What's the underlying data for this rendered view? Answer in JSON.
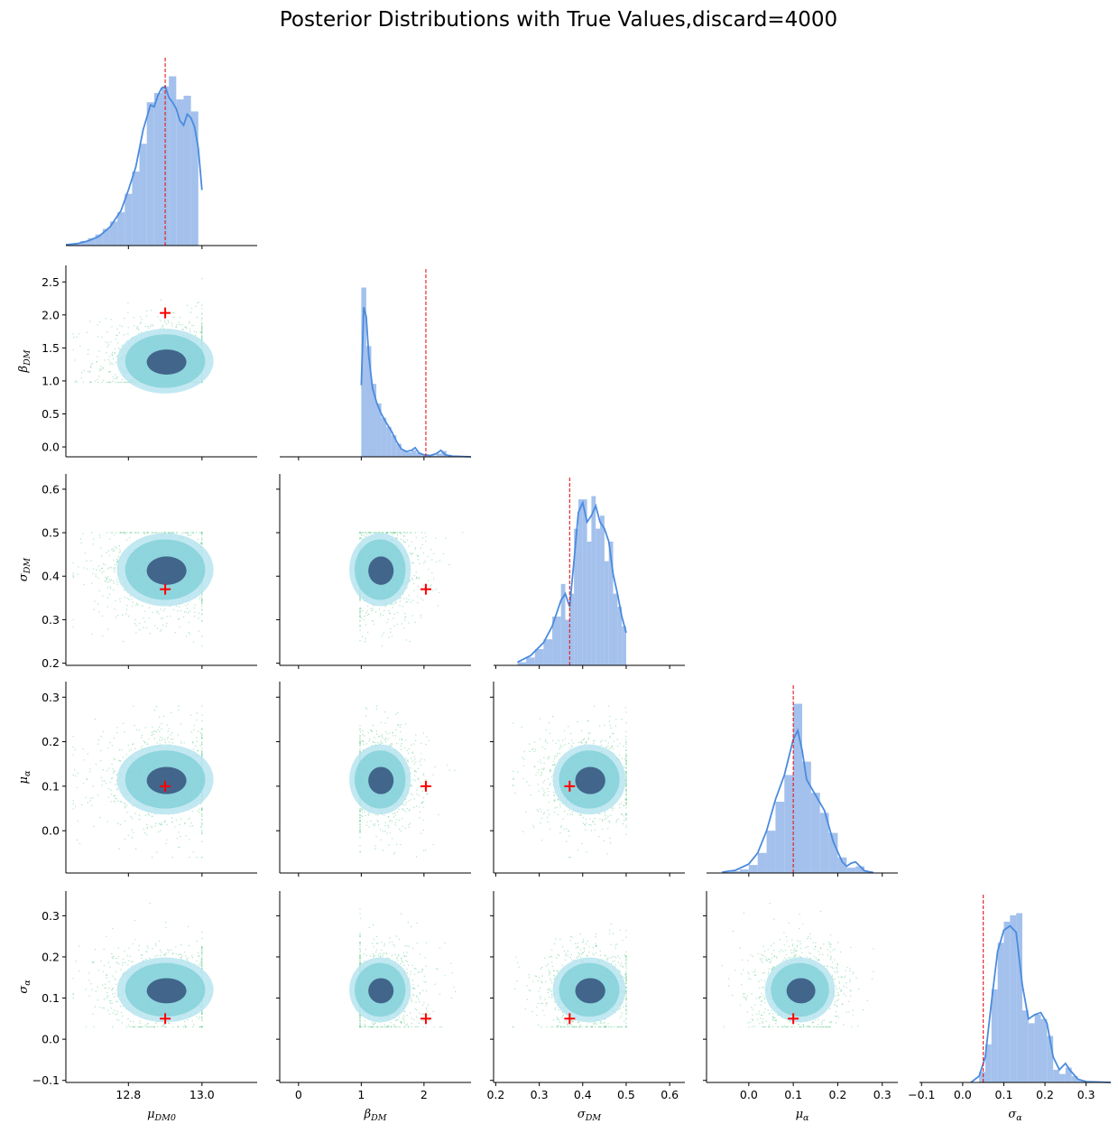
{
  "chart_data": {
    "type": "corner",
    "title": "Posterior Distributions with True Values,discard=4000",
    "parameters": [
      {
        "key": "mu_DM0",
        "label_main": "μ",
        "label_sub": "DM0",
        "true_value": 12.9,
        "range": [
          12.63,
          13.15
        ],
        "ticks": [
          12.8,
          13.0
        ],
        "tick_labels": [
          "12.8",
          "13.0"
        ]
      },
      {
        "key": "beta_DM",
        "label_main": "β",
        "label_sub": "DM",
        "true_value": 2.03,
        "range": [
          -0.3,
          2.75
        ],
        "ticks": [
          0,
          1,
          2
        ],
        "tick_labels": [
          "0",
          "1",
          "2"
        ]
      },
      {
        "key": "sigma_DM",
        "label_main": "σ",
        "label_sub": "DM",
        "true_value": 0.37,
        "range": [
          0.195,
          0.635
        ],
        "ticks": [
          0.2,
          0.3,
          0.4,
          0.5,
          0.6
        ],
        "tick_labels": [
          "0.2",
          "0.3",
          "0.4",
          "0.5",
          "0.6"
        ]
      },
      {
        "key": "mu_alpha",
        "label_main": "μ",
        "label_sub": "α",
        "true_value": 0.1,
        "range": [
          -0.095,
          0.335
        ],
        "ticks": [
          0.0,
          0.1,
          0.2,
          0.3
        ],
        "tick_labels": [
          "0.0",
          "0.1",
          "0.2",
          "0.3"
        ]
      },
      {
        "key": "sigma_alpha",
        "label_main": "σ",
        "label_sub": "α",
        "true_value": 0.05,
        "range": [
          -0.105,
          0.36
        ],
        "ticks": [
          -0.1,
          0.0,
          0.1,
          0.2,
          0.3
        ],
        "tick_labels": [
          "−0.1",
          "0.0",
          "0.1",
          "0.2",
          "0.3"
        ]
      }
    ],
    "y_ticks": {
      "beta_DM": {
        "values": [
          0.0,
          0.5,
          1.0,
          1.5,
          2.0,
          2.5
        ],
        "labels": [
          "0.0",
          "0.5",
          "1.0",
          "1.5",
          "2.0",
          "2.5"
        ],
        "range": [
          -0.15,
          2.75
        ]
      },
      "sigma_DM": {
        "values": [
          0.2,
          0.3,
          0.4,
          0.5,
          0.6
        ],
        "labels": [
          "0.2",
          "0.3",
          "0.4",
          "0.5",
          "0.6"
        ],
        "range": [
          0.195,
          0.635
        ]
      },
      "mu_alpha": {
        "values": [
          0.0,
          0.1,
          0.2,
          0.3
        ],
        "labels": [
          "0.0",
          "0.1",
          "0.2",
          "0.3"
        ],
        "range": [
          -0.095,
          0.335
        ]
      },
      "sigma_alpha": {
        "values": [
          -0.1,
          0.0,
          0.1,
          0.2,
          0.3
        ],
        "labels": [
          "−0.1",
          "0.0",
          "0.1",
          "0.2",
          "0.3"
        ],
        "range": [
          -0.105,
          0.36
        ]
      }
    },
    "histograms": {
      "mu_DM0": {
        "edges": [
          12.63,
          12.65,
          12.67,
          12.69,
          12.71,
          12.73,
          12.75,
          12.77,
          12.79,
          12.81,
          12.83,
          12.85,
          12.87,
          12.89,
          12.91,
          12.93,
          12.95,
          12.97,
          12.99,
          13.0
        ],
        "density": [
          0.02,
          0.03,
          0.05,
          0.08,
          0.12,
          0.18,
          0.26,
          0.36,
          0.56,
          0.8,
          1.1,
          1.55,
          1.65,
          1.72,
          1.83,
          1.58,
          1.62,
          1.45,
          0.0
        ],
        "kde_x": [
          12.63,
          12.66,
          12.69,
          12.72,
          12.75,
          12.78,
          12.8,
          12.82,
          12.84,
          12.86,
          12.87,
          12.88,
          12.89,
          12.9,
          12.91,
          12.92,
          12.93,
          12.94,
          12.95,
          12.96,
          12.97,
          12.98,
          12.99,
          13.0
        ],
        "kde_y": [
          0.01,
          0.02,
          0.05,
          0.1,
          0.2,
          0.38,
          0.6,
          0.85,
          1.25,
          1.52,
          1.5,
          1.62,
          1.7,
          1.72,
          1.6,
          1.55,
          1.48,
          1.35,
          1.3,
          1.42,
          1.38,
          1.28,
          1.05,
          0.6
        ]
      },
      "beta_DM": {
        "edges": [
          1.0,
          1.08,
          1.16,
          1.24,
          1.32,
          1.4,
          1.48,
          1.56,
          1.64,
          1.72,
          1.8,
          1.88,
          1.96,
          2.04,
          2.12,
          2.2,
          2.28,
          2.36,
          2.44,
          2.52,
          2.6,
          2.7
        ],
        "density": [
          2.6,
          1.7,
          1.12,
          0.82,
          0.6,
          0.46,
          0.33,
          0.2,
          0.1,
          0.07,
          0.1,
          0.06,
          0.04,
          0.03,
          0.02,
          0.05,
          0.09,
          0.03,
          0.01,
          0.01,
          0.01
        ],
        "kde_x": [
          1.0,
          1.04,
          1.08,
          1.12,
          1.18,
          1.25,
          1.32,
          1.4,
          1.48,
          1.56,
          1.64,
          1.72,
          1.8,
          1.86,
          1.92,
          2.0,
          2.1,
          2.2,
          2.27,
          2.34,
          2.45,
          2.6,
          2.75
        ],
        "kde_y": [
          1.1,
          2.3,
          2.15,
          1.55,
          1.05,
          0.82,
          0.66,
          0.52,
          0.4,
          0.24,
          0.12,
          0.08,
          0.1,
          0.14,
          0.06,
          0.03,
          0.02,
          0.05,
          0.1,
          0.03,
          0.01,
          0.005,
          0.0
        ]
      },
      "sigma_DM": {
        "edges": [
          0.25,
          0.27,
          0.29,
          0.31,
          0.33,
          0.35,
          0.36,
          0.37,
          0.38,
          0.39,
          0.4,
          0.41,
          0.42,
          0.43,
          0.44,
          0.45,
          0.46,
          0.47,
          0.48,
          0.49,
          0.5
        ],
        "density": [
          0.05,
          0.12,
          0.25,
          0.4,
          0.75,
          1.25,
          0.7,
          1.1,
          2.1,
          2.55,
          2.55,
          1.9,
          2.6,
          2.1,
          2.3,
          1.6,
          1.9,
          1.1,
          0.9,
          0.6
        ],
        "kde_x": [
          0.25,
          0.28,
          0.31,
          0.33,
          0.35,
          0.36,
          0.37,
          0.38,
          0.39,
          0.4,
          0.41,
          0.42,
          0.43,
          0.44,
          0.45,
          0.46,
          0.47,
          0.48,
          0.49,
          0.5
        ],
        "kde_y": [
          0.05,
          0.15,
          0.35,
          0.6,
          1.0,
          1.1,
          0.9,
          1.6,
          2.35,
          2.5,
          2.2,
          2.3,
          2.45,
          2.2,
          2.1,
          1.9,
          1.4,
          1.1,
          0.75,
          0.5
        ]
      },
      "mu_alpha": {
        "edges": [
          -0.06,
          -0.04,
          -0.02,
          0.0,
          0.02,
          0.04,
          0.06,
          0.08,
          0.1,
          0.12,
          0.14,
          0.16,
          0.18,
          0.2,
          0.22,
          0.24,
          0.26,
          0.28
        ],
        "density": [
          0.02,
          0.04,
          0.08,
          0.18,
          0.45,
          0.95,
          1.6,
          2.2,
          3.8,
          2.5,
          1.8,
          1.35,
          0.9,
          0.35,
          0.12,
          0.15,
          0.03
        ],
        "kde_x": [
          -0.06,
          -0.03,
          0.0,
          0.02,
          0.04,
          0.06,
          0.08,
          0.1,
          0.11,
          0.12,
          0.13,
          0.15,
          0.17,
          0.19,
          0.21,
          0.22,
          0.23,
          0.24,
          0.26,
          0.28
        ],
        "kde_y": [
          0.02,
          0.06,
          0.2,
          0.45,
          0.95,
          1.65,
          2.2,
          3.0,
          3.2,
          2.75,
          2.1,
          1.75,
          1.4,
          0.7,
          0.25,
          0.15,
          0.22,
          0.25,
          0.05,
          0.01
        ]
      },
      "sigma_alpha": {
        "edges": [
          0.04,
          0.055,
          0.07,
          0.085,
          0.1,
          0.115,
          0.13,
          0.145,
          0.16,
          0.175,
          0.19,
          0.205,
          0.22,
          0.235,
          0.25,
          0.265,
          0.28,
          0.3,
          0.33,
          0.36
        ],
        "density": [
          0.25,
          0.9,
          2.2,
          3.3,
          3.8,
          3.95,
          4.0,
          1.7,
          1.4,
          1.6,
          1.5,
          1.1,
          0.3,
          0.2,
          0.35,
          0.15,
          0.05,
          0.02,
          0.01
        ],
        "kde_x": [
          0.02,
          0.04,
          0.055,
          0.07,
          0.085,
          0.1,
          0.115,
          0.13,
          0.145,
          0.16,
          0.175,
          0.19,
          0.205,
          0.22,
          0.235,
          0.25,
          0.26,
          0.28,
          0.3,
          0.33,
          0.36
        ],
        "kde_y": [
          0.0,
          0.15,
          0.6,
          1.9,
          3.1,
          3.6,
          3.7,
          3.55,
          2.3,
          1.5,
          1.6,
          1.65,
          1.4,
          0.6,
          0.3,
          0.45,
          0.3,
          0.08,
          0.02,
          0.01,
          0.0
        ]
      }
    },
    "colors": {
      "hist": "#a3c1ec",
      "kde": "#4b8bde",
      "truth_line": "#e8161b",
      "truth_marker": "#ff0000",
      "scatter": "#6fcf97",
      "contour_outer": "#b7e4f0",
      "contour_mid": "#7ccfd6",
      "contour_inner": "#3e5f86"
    },
    "grid": false,
    "legend": "none"
  }
}
